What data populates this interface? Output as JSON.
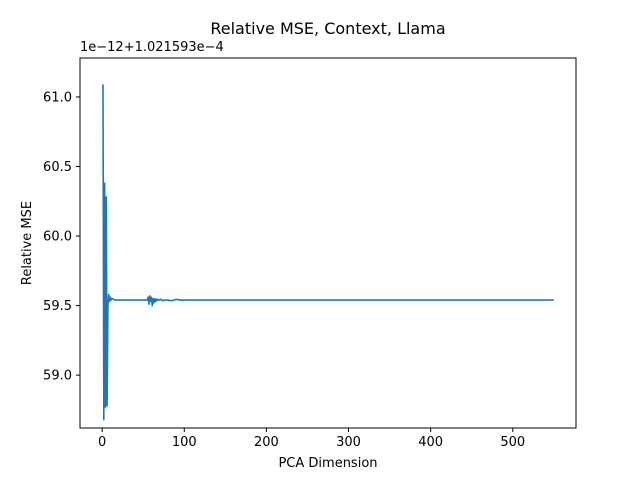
{
  "chart_data": {
    "type": "line",
    "title": "Relative MSE, Context, Llama",
    "xlabel": "PCA Dimension",
    "ylabel": "Relative MSE",
    "y_offset_text": "1e−12+1.021593e−4",
    "xlim": [
      -27,
      577
    ],
    "ylim": [
      58.62,
      61.28
    ],
    "x_ticks": [
      0,
      100,
      200,
      300,
      400,
      500
    ],
    "x_tick_labels": [
      "0",
      "100",
      "200",
      "300",
      "400",
      "500"
    ],
    "y_ticks": [
      59.0,
      59.5,
      60.0,
      60.5,
      61.0
    ],
    "y_tick_labels": [
      "59.0",
      "59.5",
      "60.0",
      "60.5",
      "61.0"
    ],
    "grid": false,
    "series_color": "#1f77b4",
    "series": [
      {
        "x": [
          1,
          2,
          3,
          4,
          5,
          6,
          7,
          8,
          9,
          10,
          11,
          12,
          14,
          16,
          20,
          30,
          40,
          50,
          55,
          56,
          57,
          58,
          59,
          60,
          61,
          62,
          63,
          64,
          65,
          66,
          67,
          68,
          70,
          72,
          74,
          76,
          80,
          85,
          90,
          95,
          100,
          120,
          150,
          200,
          300,
          400,
          500,
          550
        ],
        "y": [
          61.09,
          58.68,
          60.38,
          58.77,
          60.28,
          58.78,
          59.5,
          59.58,
          59.53,
          59.56,
          59.54,
          59.55,
          59.545,
          59.54,
          59.54,
          59.54,
          59.54,
          59.54,
          59.54,
          59.56,
          59.51,
          59.57,
          59.53,
          59.56,
          59.5,
          59.55,
          59.52,
          59.55,
          59.53,
          59.545,
          59.535,
          59.545,
          59.54,
          59.545,
          59.535,
          59.54,
          59.54,
          59.535,
          59.545,
          59.54,
          59.54,
          59.54,
          59.54,
          59.54,
          59.54,
          59.54,
          59.54,
          59.54
        ]
      }
    ]
  }
}
